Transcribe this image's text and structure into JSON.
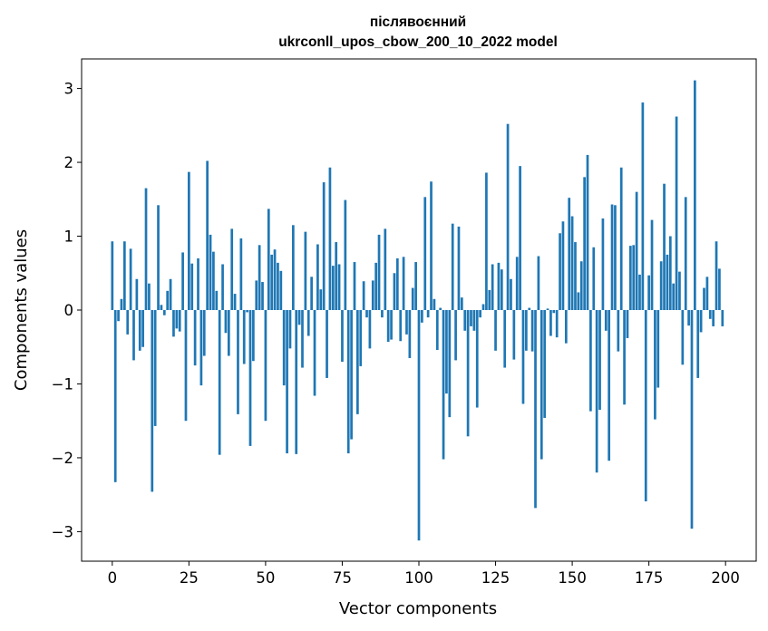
{
  "chart_data": {
    "type": "bar",
    "title": [
      "післявоєнний",
      "ukrconll_upos_cbow_200_10_2022 model"
    ],
    "xlabel": "Vector components",
    "ylabel": "Components values",
    "xlim": [
      -10,
      210
    ],
    "ylim": [
      -3.4,
      3.4
    ],
    "xticks": [
      0,
      25,
      50,
      75,
      100,
      125,
      150,
      175,
      200
    ],
    "yticks": [
      -3,
      -2,
      -1,
      0,
      1,
      2,
      3
    ],
    "ytick_labels": [
      "−3",
      "−2",
      "−1",
      "0",
      "1",
      "2",
      "3"
    ],
    "bar_color": "#1f77b4",
    "grid": false,
    "x": [
      0,
      1,
      2,
      3,
      4,
      5,
      6,
      7,
      8,
      9,
      10,
      11,
      12,
      13,
      14,
      15,
      16,
      17,
      18,
      19,
      20,
      21,
      22,
      23,
      24,
      25,
      26,
      27,
      28,
      29,
      30,
      31,
      32,
      33,
      34,
      35,
      36,
      37,
      38,
      39,
      40,
      41,
      42,
      43,
      44,
      45,
      46,
      47,
      48,
      49,
      50,
      51,
      52,
      53,
      54,
      55,
      56,
      57,
      58,
      59,
      60,
      61,
      62,
      63,
      64,
      65,
      66,
      67,
      68,
      69,
      70,
      71,
      72,
      73,
      74,
      75,
      76,
      77,
      78,
      79,
      80,
      81,
      82,
      83,
      84,
      85,
      86,
      87,
      88,
      89,
      90,
      91,
      92,
      93,
      94,
      95,
      96,
      97,
      98,
      99,
      100,
      101,
      102,
      103,
      104,
      105,
      106,
      107,
      108,
      109,
      110,
      111,
      112,
      113,
      114,
      115,
      116,
      117,
      118,
      119,
      120,
      121,
      122,
      123,
      124,
      125,
      126,
      127,
      128,
      129,
      130,
      131,
      132,
      133,
      134,
      135,
      136,
      137,
      138,
      139,
      140,
      141,
      142,
      143,
      144,
      145,
      146,
      147,
      148,
      149,
      150,
      151,
      152,
      153,
      154,
      155,
      156,
      157,
      158,
      159,
      160,
      161,
      162,
      163,
      164,
      165,
      166,
      167,
      168,
      169,
      170,
      171,
      172,
      173,
      174,
      175,
      176,
      177,
      178,
      179,
      180,
      181,
      182,
      183,
      184,
      185,
      186,
      187,
      188,
      189,
      190,
      191,
      192,
      193,
      194,
      195,
      196,
      197,
      198,
      199
    ],
    "values": [
      0.93,
      -2.33,
      -0.15,
      0.15,
      0.93,
      -0.33,
      0.83,
      -0.68,
      0.42,
      -0.55,
      -0.5,
      1.65,
      0.36,
      -2.46,
      -1.57,
      1.42,
      0.07,
      -0.07,
      0.26,
      0.42,
      -0.36,
      -0.25,
      -0.29,
      0.78,
      -1.5,
      1.87,
      0.63,
      -0.75,
      0.7,
      -1.02,
      -0.62,
      2.02,
      1.02,
      0.79,
      0.26,
      -1.96,
      0.62,
      -0.31,
      -0.62,
      1.1,
      0.22,
      -1.41,
      0.97,
      -0.73,
      -0.03,
      -1.84,
      -0.69,
      0.4,
      0.88,
      0.38,
      -1.5,
      1.37,
      0.75,
      0.82,
      0.64,
      0.53,
      -1.02,
      -1.94,
      -0.52,
      1.15,
      -1.95,
      -0.2,
      -0.78,
      1.06,
      -0.35,
      0.45,
      -1.16,
      0.89,
      0.28,
      1.73,
      -0.92,
      1.93,
      0.6,
      0.92,
      0.62,
      -0.7,
      1.49,
      -1.94,
      -1.75,
      0.65,
      -1.41,
      -0.76,
      0.39,
      -0.1,
      -0.52,
      0.4,
      0.64,
      1.02,
      -0.1,
      1.1,
      -0.43,
      -0.4,
      0.5,
      0.7,
      -0.42,
      0.72,
      -0.33,
      -0.65,
      0.3,
      0.65,
      -3.12,
      -0.17,
      1.53,
      -0.1,
      1.74,
      0.15,
      -0.54,
      0.03,
      -2.02,
      -1.13,
      -1.45,
      1.17,
      -0.68,
      1.13,
      0.17,
      -0.28,
      -1.71,
      -0.22,
      -0.28,
      -1.32,
      -0.1,
      0.08,
      1.86,
      0.27,
      0.62,
      -0.55,
      0.64,
      0.55,
      -0.78,
      2.52,
      0.42,
      -0.67,
      0.72,
      1.95,
      -1.27,
      -0.55,
      0.03,
      -0.56,
      -2.68,
      0.73,
      -2.02,
      -1.46,
      0.02,
      -0.35,
      -0.04,
      -0.37,
      1.04,
      1.2,
      -0.45,
      1.52,
      1.27,
      0.92,
      0.24,
      0.66,
      1.8,
      2.1,
      -1.37,
      0.85,
      -2.2,
      -1.35,
      1.24,
      -0.28,
      -2.04,
      1.43,
      1.42,
      -0.56,
      1.93,
      -1.28,
      -0.38,
      0.87,
      0.88,
      1.6,
      0.48,
      2.81,
      -2.59,
      0.47,
      1.22,
      -1.48,
      -1.05,
      0.66,
      1.71,
      0.75,
      1.0,
      0.36,
      2.62,
      0.52,
      -0.74,
      1.53,
      -0.21,
      -2.96,
      3.11,
      -0.92,
      -0.3,
      0.3,
      0.45,
      -0.12,
      -0.22,
      0.93,
      0.56,
      -0.22
    ]
  }
}
